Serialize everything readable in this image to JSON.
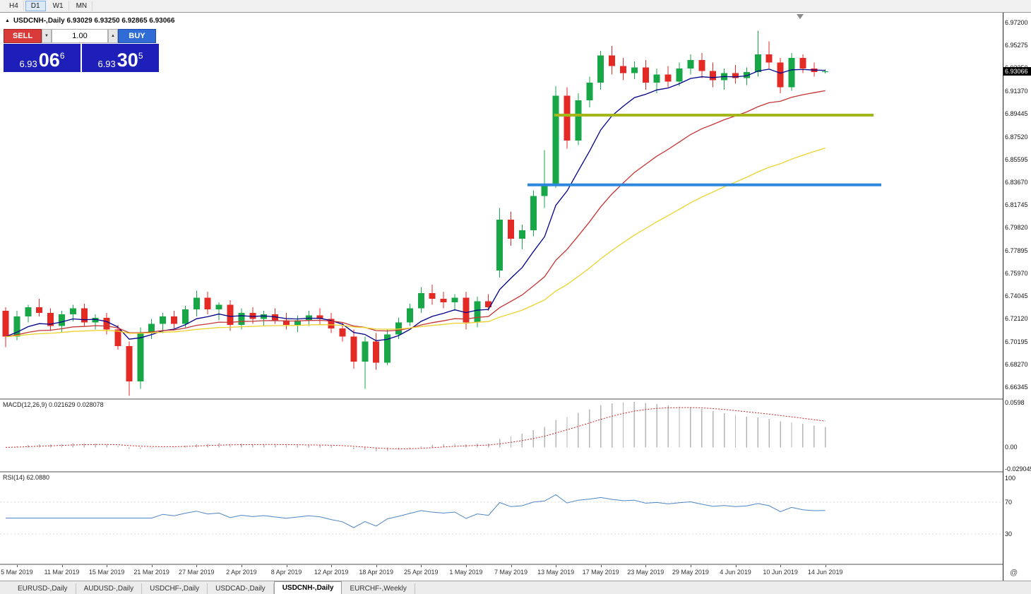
{
  "toolbar": {
    "timeframes": [
      {
        "label": "H4",
        "active": false
      },
      {
        "label": "D1",
        "active": true
      },
      {
        "label": "W1",
        "active": false
      },
      {
        "label": "MN",
        "active": false
      }
    ]
  },
  "symbol_info": {
    "marker": "▲",
    "text": "USDCNH-,Daily  6.93029 6.93250 6.92865 6.93066"
  },
  "trade_panel": {
    "sell_label": "SELL",
    "buy_label": "BUY",
    "volume": "1.00",
    "sell_price_main": "6.93",
    "sell_price_pips": "06",
    "sell_price_point": "6",
    "buy_price_main": "6.93",
    "buy_price_pips": "30",
    "buy_price_point": "5",
    "colors": {
      "sell": "#d93b3b",
      "buy": "#2f6cd5",
      "price_bg": "#1e1eb8"
    }
  },
  "price_badge": "6.93066",
  "tabs": [
    {
      "label": "EURUSD-,Daily",
      "active": false
    },
    {
      "label": "AUDUSD-,Daily",
      "active": false
    },
    {
      "label": "USDCHF-,Daily",
      "active": false
    },
    {
      "label": "USDCAD-,Daily",
      "active": false
    },
    {
      "label": "USDCNH-,Daily",
      "active": true
    },
    {
      "label": "EURCHF-,Weekly",
      "active": false
    }
  ],
  "status_icons": {
    "bottom_right": "@"
  },
  "chart_data": {
    "type": "candlestick",
    "symbol": "USDCNH-",
    "timeframe": "Daily",
    "ohlc_display": {
      "open": "6.93029",
      "high": "6.93250",
      "low": "6.92865",
      "close": "6.93066"
    },
    "price_range": {
      "top": 6.9802,
      "bottom": 6.6538
    },
    "price_axis_labels": [
      "6.97200",
      "6.95275",
      "6.93350",
      "6.91370",
      "6.89445",
      "6.87520",
      "6.85595",
      "6.83670",
      "6.81745",
      "6.79820",
      "6.77895",
      "6.75970",
      "6.74045",
      "6.72120",
      "6.70195",
      "6.68270",
      "6.66345"
    ],
    "colors": {
      "up": "#17a747",
      "down": "#e32a24"
    },
    "candles": [
      [
        6.728,
        6.731,
        6.697,
        6.706
      ],
      [
        6.706,
        6.728,
        6.703,
        6.723
      ],
      [
        6.723,
        6.733,
        6.718,
        6.731
      ],
      [
        6.731,
        6.738,
        6.723,
        6.726
      ],
      [
        6.726,
        6.73,
        6.711,
        6.715
      ],
      [
        6.715,
        6.728,
        6.71,
        6.725
      ],
      [
        6.725,
        6.733,
        6.719,
        6.73
      ],
      [
        6.73,
        6.734,
        6.715,
        6.718
      ],
      [
        6.718,
        6.725,
        6.712,
        6.722
      ],
      [
        6.722,
        6.726,
        6.708,
        6.712
      ],
      [
        6.712,
        6.716,
        6.695,
        6.698
      ],
      [
        6.698,
        6.702,
        6.656,
        6.668
      ],
      [
        6.668,
        6.714,
        6.662,
        6.709
      ],
      [
        6.709,
        6.721,
        6.704,
        6.717
      ],
      [
        6.717,
        6.726,
        6.709,
        6.723
      ],
      [
        6.723,
        6.728,
        6.713,
        6.717
      ],
      [
        6.717,
        6.732,
        6.714,
        6.729
      ],
      [
        6.729,
        6.745,
        6.723,
        6.739
      ],
      [
        6.739,
        6.744,
        6.725,
        6.729
      ],
      [
        6.729,
        6.735,
        6.72,
        6.733
      ],
      [
        6.733,
        6.737,
        6.711,
        6.716
      ],
      [
        6.716,
        6.73,
        6.712,
        6.726
      ],
      [
        6.726,
        6.731,
        6.717,
        6.721
      ],
      [
        6.721,
        6.728,
        6.715,
        6.725
      ],
      [
        6.725,
        6.73,
        6.717,
        6.72
      ],
      [
        6.72,
        6.726,
        6.712,
        6.716
      ],
      [
        6.716,
        6.724,
        6.71,
        6.72
      ],
      [
        6.72,
        6.728,
        6.715,
        6.724
      ],
      [
        6.724,
        6.73,
        6.716,
        6.721
      ],
      [
        6.721,
        6.726,
        6.709,
        6.713
      ],
      [
        6.713,
        6.718,
        6.702,
        6.706
      ],
      [
        6.706,
        6.712,
        6.679,
        6.685
      ],
      [
        6.685,
        6.706,
        6.662,
        6.702
      ],
      [
        6.702,
        6.709,
        6.678,
        6.684
      ],
      [
        6.684,
        6.712,
        6.682,
        6.708
      ],
      [
        6.708,
        6.722,
        6.704,
        6.718
      ],
      [
        6.718,
        6.734,
        6.715,
        6.73
      ],
      [
        6.73,
        6.748,
        6.726,
        6.743
      ],
      [
        6.743,
        6.75,
        6.733,
        6.738
      ],
      [
        6.738,
        6.744,
        6.73,
        6.735
      ],
      [
        6.735,
        6.742,
        6.728,
        6.739
      ],
      [
        6.739,
        6.744,
        6.712,
        6.718
      ],
      [
        6.718,
        6.74,
        6.714,
        6.736
      ],
      [
        6.736,
        6.742,
        6.728,
        6.731
      ],
      [
        6.762,
        6.815,
        6.756,
        6.805
      ],
      [
        6.805,
        6.812,
        6.783,
        6.789
      ],
      [
        6.789,
        6.801,
        6.78,
        6.796
      ],
      [
        6.796,
        6.83,
        6.791,
        6.825
      ],
      [
        6.825,
        6.864,
        6.815,
        6.835
      ],
      [
        6.835,
        6.918,
        6.832,
        6.91
      ],
      [
        6.91,
        6.917,
        6.865,
        6.872
      ],
      [
        6.872,
        6.912,
        6.868,
        6.906
      ],
      [
        6.906,
        6.926,
        6.9,
        6.921
      ],
      [
        6.921,
        6.948,
        6.915,
        6.944
      ],
      [
        6.944,
        6.952,
        6.928,
        6.935
      ],
      [
        6.935,
        6.942,
        6.923,
        6.929
      ],
      [
        6.929,
        6.939,
        6.924,
        6.934
      ],
      [
        6.934,
        6.94,
        6.915,
        6.921
      ],
      [
        6.921,
        6.933,
        6.912,
        6.928
      ],
      [
        6.928,
        6.935,
        6.917,
        6.922
      ],
      [
        6.922,
        6.938,
        6.918,
        6.933
      ],
      [
        6.933,
        6.945,
        6.928,
        6.94
      ],
      [
        6.94,
        6.946,
        6.925,
        6.931
      ],
      [
        6.931,
        6.938,
        6.917,
        6.923
      ],
      [
        6.923,
        6.933,
        6.915,
        6.929
      ],
      [
        6.929,
        6.936,
        6.92,
        6.925
      ],
      [
        6.925,
        6.934,
        6.919,
        6.93
      ],
      [
        6.93,
        6.965,
        6.926,
        6.945
      ],
      [
        6.945,
        6.956,
        6.933,
        6.938
      ],
      [
        6.938,
        6.942,
        6.912,
        6.917
      ],
      [
        6.917,
        6.946,
        6.914,
        6.942
      ],
      [
        6.942,
        6.945,
        6.929,
        6.933
      ],
      [
        6.933,
        6.938,
        6.926,
        6.93
      ],
      [
        6.93029,
        6.9325,
        6.92865,
        6.93066
      ]
    ],
    "date_labels": [
      {
        "label": "5 Mar 2019",
        "i": 1
      },
      {
        "label": "11 Mar 2019",
        "i": 5
      },
      {
        "label": "15 Mar 2019",
        "i": 9
      },
      {
        "label": "21 Mar 2019",
        "i": 13
      },
      {
        "label": "27 Mar 2019",
        "i": 17
      },
      {
        "label": "2 Apr 2019",
        "i": 21
      },
      {
        "label": "8 Apr 2019",
        "i": 25
      },
      {
        "label": "12 Apr 2019",
        "i": 29
      },
      {
        "label": "18 Apr 2019",
        "i": 33
      },
      {
        "label": "25 Apr 2019",
        "i": 37
      },
      {
        "label": "1 May 2019",
        "i": 41
      },
      {
        "label": "7 May 2019",
        "i": 45
      },
      {
        "label": "13 May 2019",
        "i": 49
      },
      {
        "label": "17 May 2019",
        "i": 53
      },
      {
        "label": "23 May 2019",
        "i": 57
      },
      {
        "label": "29 May 2019",
        "i": 61
      },
      {
        "label": "4 Jun 2019",
        "i": 65
      },
      {
        "label": "10 Jun 2019",
        "i": 69
      },
      {
        "label": "14 Jun 2019",
        "i": 73
      }
    ],
    "moving_averages": [
      {
        "period": 8,
        "color": "#00008b"
      },
      {
        "period": 21,
        "color": "#c43434"
      },
      {
        "period": 45,
        "color": "#ecd22c"
      }
    ],
    "hlines": [
      {
        "price": 6.8935,
        "x1": 0.553,
        "x2": 0.871,
        "color": "#a4b619",
        "width": 4
      },
      {
        "price": 6.8345,
        "x1": 0.526,
        "x2": 0.879,
        "color": "#2c87dd",
        "width": 4
      }
    ],
    "macd": {
      "label": "MACD(12,26,9) 0.021629 0.028078",
      "params": [
        12,
        26,
        9
      ],
      "value_main": "0.021629",
      "value_signal": "0.028078",
      "axis_top": "0.0598",
      "axis_zero": "0.00",
      "axis_bottom": "-0.029045",
      "top": 0.0598,
      "bottom": -0.029045,
      "histogram_color": "#b6b6b6",
      "signal_color": "#cc2222"
    },
    "rsi": {
      "label": "RSI(14) 62.0880",
      "period": 14,
      "value": "62.0880",
      "axis_labels": [
        100,
        70,
        30
      ],
      "levels": [
        70,
        30
      ],
      "line_color": "#4d86c6"
    }
  }
}
